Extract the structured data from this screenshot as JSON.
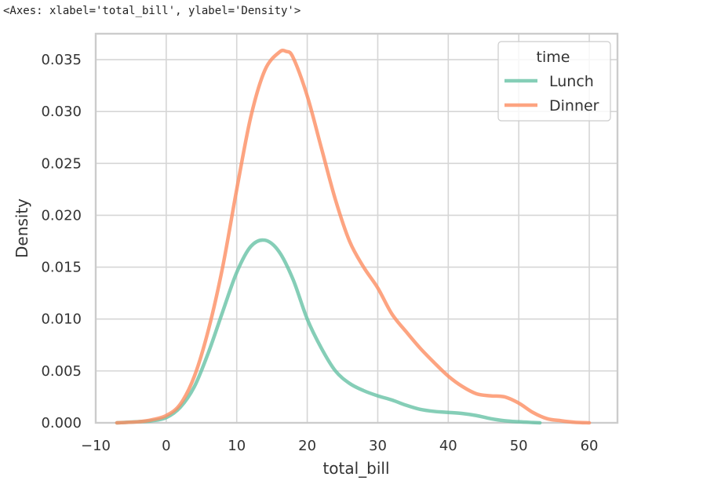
{
  "repr_text": "<Axes: xlabel='total_bill', ylabel='Density'>",
  "chart_data": {
    "type": "line",
    "kind": "kde",
    "xlabel": "total_bill",
    "ylabel": "Density",
    "xlim": [
      -10,
      64
    ],
    "ylim": [
      0,
      0.0375
    ],
    "xticks": [
      -10,
      0,
      10,
      20,
      30,
      40,
      50,
      60
    ],
    "xtick_labels": [
      "−10",
      "0",
      "10",
      "20",
      "30",
      "40",
      "50",
      "60"
    ],
    "yticks": [
      0,
      0.005,
      0.01,
      0.015,
      0.02,
      0.025,
      0.03,
      0.035
    ],
    "ytick_labels": [
      "0.000",
      "0.005",
      "0.010",
      "0.015",
      "0.020",
      "0.025",
      "0.030",
      "0.035"
    ],
    "grid": true,
    "legend": {
      "title": "time",
      "position": "top-right"
    },
    "series": [
      {
        "name": "Lunch",
        "color": "#66c2a5",
        "x": [
          -7,
          -4,
          -2,
          0,
          2,
          4,
          6,
          8,
          10,
          12,
          14,
          16,
          18,
          20,
          22,
          24,
          26,
          28,
          30,
          32,
          34,
          36,
          38,
          40,
          42,
          44,
          46,
          48,
          50,
          52,
          53
        ],
        "y": [
          0.0,
          0.0001,
          0.0002,
          0.0005,
          0.0015,
          0.0035,
          0.0068,
          0.0107,
          0.0145,
          0.017,
          0.0176,
          0.0165,
          0.0138,
          0.01,
          0.0072,
          0.005,
          0.0038,
          0.0031,
          0.0026,
          0.0022,
          0.0017,
          0.0013,
          0.0011,
          0.001,
          0.0009,
          0.0007,
          0.0004,
          0.0002,
          0.0001,
          3e-05,
          0.0
        ]
      },
      {
        "name": "Dinner",
        "color": "#fc8d62",
        "x": [
          -7,
          -4,
          -2,
          0,
          2,
          4,
          6,
          8,
          10,
          12,
          14,
          16,
          17,
          18,
          20,
          22,
          24,
          26,
          28,
          30,
          32,
          34,
          36,
          38,
          40,
          42,
          44,
          46,
          48,
          50,
          52,
          54,
          56,
          58,
          60
        ],
        "y": [
          0.0,
          0.0001,
          0.0003,
          0.0007,
          0.0018,
          0.0045,
          0.009,
          0.015,
          0.0225,
          0.0295,
          0.034,
          0.0357,
          0.0358,
          0.0352,
          0.0315,
          0.0265,
          0.0215,
          0.0175,
          0.015,
          0.013,
          0.0105,
          0.0088,
          0.0072,
          0.0058,
          0.0045,
          0.0035,
          0.0028,
          0.0026,
          0.0025,
          0.0019,
          0.001,
          0.0004,
          0.0002,
          5e-05,
          0.0
        ]
      }
    ]
  }
}
